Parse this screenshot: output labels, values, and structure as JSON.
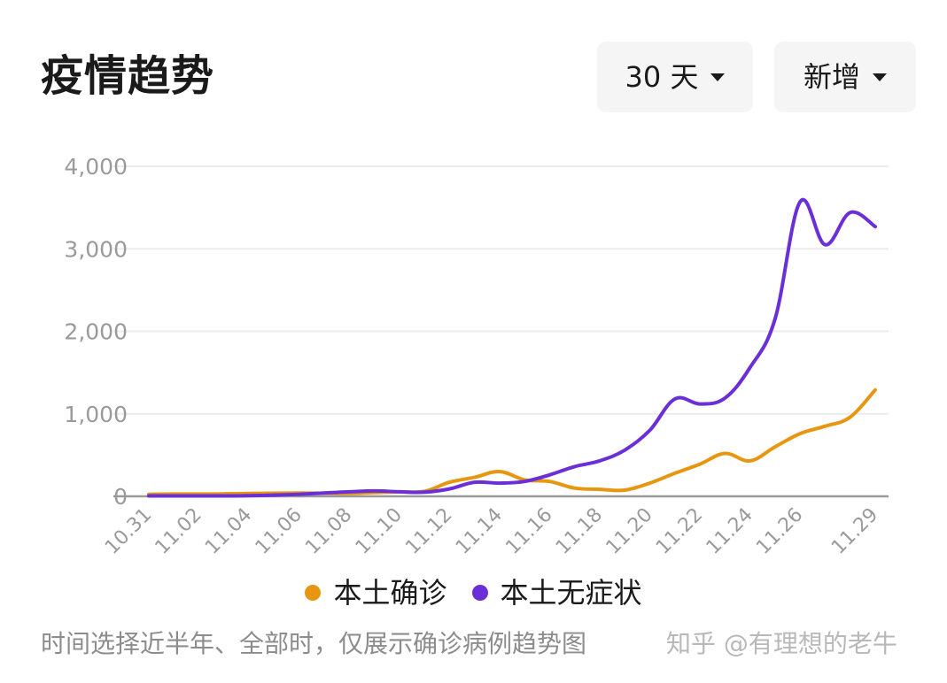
{
  "header": {
    "title": "疫情趋势",
    "range_dropdown": {
      "selected": "30 天"
    },
    "metric_dropdown": {
      "selected": "新增"
    }
  },
  "colors": {
    "series_confirmed": "#e6960f",
    "series_asymptomatic": "#6a2fd6",
    "grid": "#ececec",
    "axis": "#9a9a9a",
    "tick_text": "#9a9a9a"
  },
  "chart_data": {
    "type": "line",
    "x": [
      "10.31",
      "11.01",
      "11.02",
      "11.03",
      "11.04",
      "11.05",
      "11.06",
      "11.07",
      "11.08",
      "11.09",
      "11.10",
      "11.11",
      "11.12",
      "11.13",
      "11.14",
      "11.15",
      "11.16",
      "11.17",
      "11.18",
      "11.19",
      "11.20",
      "11.21",
      "11.22",
      "11.23",
      "11.24",
      "11.25",
      "11.26",
      "11.27",
      "11.28",
      "11.29"
    ],
    "x_tick_labels": [
      "10.31",
      "11.02",
      "11.04",
      "11.06",
      "11.08",
      "11.10",
      "11.12",
      "11.14",
      "11.16",
      "11.18",
      "11.20",
      "11.22",
      "11.24",
      "11.26",
      "11.29"
    ],
    "series": [
      {
        "name": "本土确诊",
        "values": [
          25,
          28,
          28,
          30,
          35,
          38,
          40,
          38,
          35,
          45,
          55,
          60,
          170,
          230,
          300,
          200,
          180,
          100,
          85,
          75,
          160,
          280,
          390,
          520,
          430,
          600,
          760,
          850,
          960,
          1290
        ]
      },
      {
        "name": "本土无症状",
        "values": [
          5,
          5,
          5,
          5,
          8,
          15,
          25,
          40,
          55,
          65,
          55,
          50,
          90,
          170,
          160,
          180,
          260,
          360,
          430,
          560,
          800,
          1180,
          1120,
          1190,
          1560,
          2150,
          3570,
          3050,
          3440,
          3270
        ]
      }
    ],
    "yticks": [
      0,
      1000,
      2000,
      3000,
      4000
    ],
    "ytick_labels": [
      "0",
      "1,000",
      "2,000",
      "3,000",
      "4,000"
    ],
    "ylim": [
      0,
      4000
    ],
    "grid": true,
    "legend": "bottom-center"
  },
  "footer": {
    "note": "时间选择近半年、全部时，仅展示确诊病例趋势图",
    "watermark": "知乎 @有理想的老牛"
  }
}
